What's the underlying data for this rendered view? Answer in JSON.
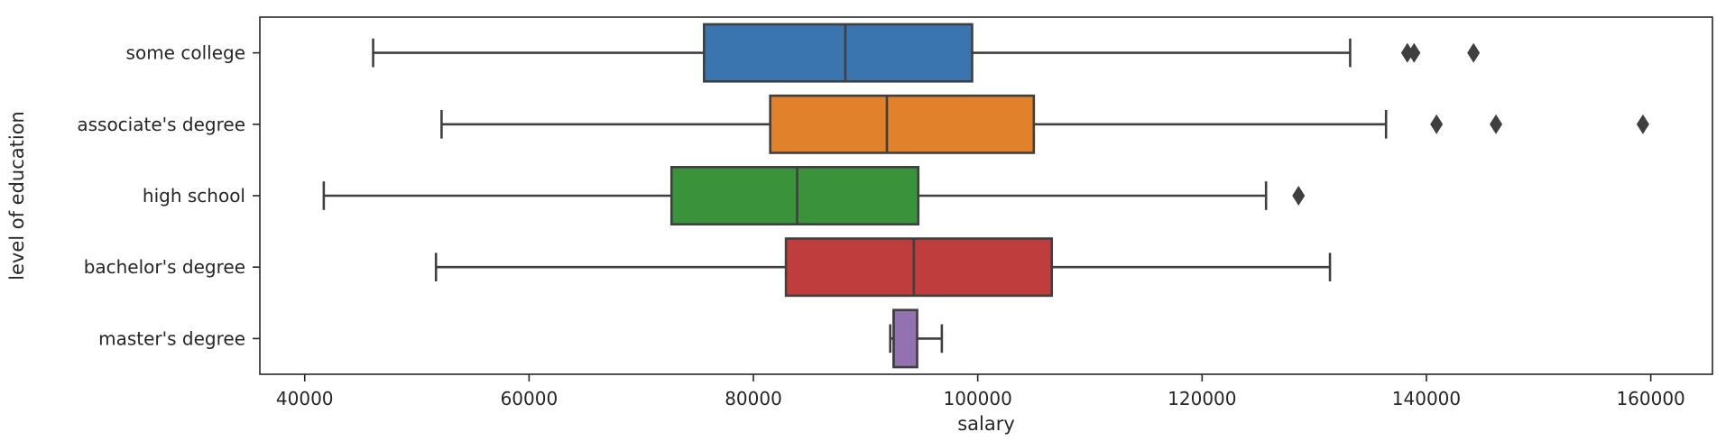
{
  "chart_data": {
    "type": "boxplot",
    "orientation": "horizontal",
    "title": "",
    "xlabel": "salary",
    "ylabel": "level of education",
    "xlim": [
      36000,
      165500
    ],
    "xticks": [
      40000,
      60000,
      80000,
      100000,
      120000,
      140000,
      160000
    ],
    "xtick_labels": [
      "40000",
      "60000",
      "80000",
      "100000",
      "120000",
      "140000",
      "160000"
    ],
    "grid": false,
    "categories": [
      "some college",
      "associate's degree",
      "high school",
      "bachelor's degree",
      "master's degree"
    ],
    "boxes": [
      {
        "category": "some college",
        "whisker_low": 46100,
        "q1": 75600,
        "median": 88200,
        "q3": 99500,
        "whisker_high": 133200,
        "outliers": [
          138300,
          138900,
          144200
        ],
        "color": "#3a75b0"
      },
      {
        "category": "associate's degree",
        "whisker_low": 52200,
        "q1": 81500,
        "median": 91900,
        "q3": 105000,
        "whisker_high": 136400,
        "outliers": [
          140900,
          146200,
          159300
        ],
        "color": "#e1812c"
      },
      {
        "category": "high school",
        "whisker_low": 41700,
        "q1": 72700,
        "median": 83900,
        "q3": 94700,
        "whisker_high": 125700,
        "outliers": [
          128600
        ],
        "color": "#3a923a"
      },
      {
        "category": "bachelor's degree",
        "whisker_low": 51700,
        "q1": 82900,
        "median": 94300,
        "q3": 106600,
        "whisker_high": 131400,
        "outliers": [],
        "color": "#c03d3e"
      },
      {
        "category": "master's degree",
        "whisker_low": 92200,
        "q1": 92500,
        "median": 92500,
        "q3": 94600,
        "whisker_high": 96800,
        "outliers": [],
        "color": "#9372b2"
      }
    ]
  }
}
